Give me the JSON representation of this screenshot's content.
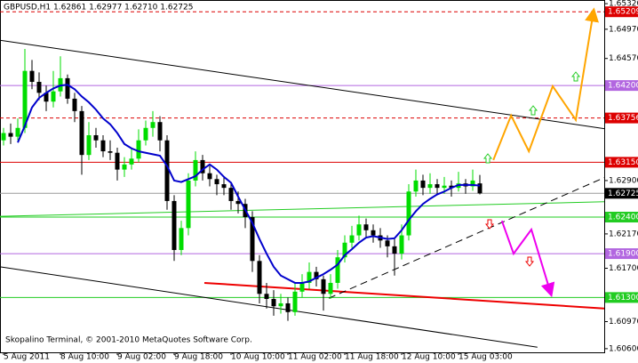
{
  "chart_data": {
    "type": "candlestick",
    "title": "GBPUSD,H1  1.62861 1.62977 1.62710 1.62725",
    "footer": "Skopalino Terminal, © 2001-2010 MetaQuotes Software Corp.",
    "up_color": "#00dd00",
    "down_color": "#000000",
    "categories": [
      "5 Aug 2011",
      null,
      null,
      null,
      null,
      null,
      null,
      null,
      "8 Aug 10:00",
      null,
      null,
      null,
      null,
      null,
      null,
      null,
      "9 Aug 02:00",
      null,
      null,
      null,
      null,
      null,
      null,
      null,
      "9 Aug 18:00",
      null,
      null,
      null,
      null,
      null,
      null,
      null,
      "10 Aug 10:00",
      null,
      null,
      null,
      null,
      null,
      null,
      null,
      "11 Aug 02:00",
      null,
      null,
      null,
      null,
      null,
      null,
      null,
      "11 Aug 18:00",
      null,
      null,
      null,
      null,
      null,
      null,
      null,
      "12 Aug 10:00",
      null,
      null,
      null,
      null,
      null,
      null,
      null,
      "15 Aug 03:00",
      null,
      null,
      null
    ],
    "open": [
      1.6345,
      1.6355,
      1.635,
      1.6362,
      1.644,
      1.6425,
      1.641,
      1.6398,
      1.6412,
      1.643,
      1.6402,
      1.6385,
      1.6325,
      1.6352,
      1.6345,
      1.633,
      1.6328,
      1.6305,
      1.6312,
      1.632,
      1.6345,
      1.6362,
      1.637,
      1.6345,
      1.6262,
      1.6195,
      1.6225,
      1.629,
      1.6318,
      1.63,
      1.6292,
      1.6285,
      1.628,
      1.6262,
      1.6258,
      1.624,
      1.618,
      1.6135,
      1.6128,
      1.6118,
      1.6122,
      1.611,
      1.6138,
      1.615,
      1.6165,
      1.6155,
      1.6135,
      1.615,
      1.6185,
      1.6205,
      1.6215,
      1.623,
      1.6222,
      1.6215,
      1.6208,
      1.62,
      1.619,
      1.6215,
      1.6275,
      1.629,
      1.628,
      1.6285,
      1.628,
      1.6283,
      1.628,
      1.6286,
      1.6282,
      1.62861
    ],
    "high": [
      1.6362,
      1.6368,
      1.6375,
      1.647,
      1.6455,
      1.6438,
      1.642,
      1.644,
      1.646,
      1.6435,
      1.641,
      1.6392,
      1.637,
      1.6362,
      1.6352,
      1.6345,
      1.6335,
      1.6322,
      1.6335,
      1.636,
      1.6372,
      1.6385,
      1.6378,
      1.6352,
      1.627,
      1.6235,
      1.63,
      1.633,
      1.6325,
      1.631,
      1.6298,
      1.6295,
      1.6288,
      1.6275,
      1.6265,
      1.6248,
      1.6188,
      1.615,
      1.614,
      1.6135,
      1.613,
      1.615,
      1.6162,
      1.6178,
      1.6172,
      1.616,
      1.6162,
      1.6195,
      1.6215,
      1.6228,
      1.6242,
      1.6238,
      1.623,
      1.6225,
      1.6215,
      1.621,
      1.623,
      1.6285,
      1.6305,
      1.6298,
      1.63,
      1.6292,
      1.6295,
      1.629,
      1.6302,
      1.6292,
      1.6305,
      1.62977
    ],
    "low": [
      1.6338,
      1.634,
      1.6345,
      1.6355,
      1.6415,
      1.64,
      1.6385,
      1.639,
      1.6405,
      1.6395,
      1.637,
      1.6298,
      1.6318,
      1.6335,
      1.6322,
      1.6318,
      1.629,
      1.6295,
      1.6305,
      1.6315,
      1.6338,
      1.635,
      1.633,
      1.625,
      1.618,
      1.6188,
      1.6215,
      1.6282,
      1.629,
      1.6282,
      1.627,
      1.627,
      1.625,
      1.6245,
      1.6225,
      1.6165,
      1.6122,
      1.6115,
      1.6105,
      1.6108,
      1.6098,
      1.6105,
      1.613,
      1.6142,
      1.6145,
      1.6112,
      1.6128,
      1.6142,
      1.6178,
      1.6198,
      1.6208,
      1.6212,
      1.6205,
      1.6198,
      1.6185,
      1.616,
      1.6182,
      1.6208,
      1.6268,
      1.627,
      1.6272,
      1.627,
      1.6272,
      1.6268,
      1.6275,
      1.6272,
      1.6276,
      1.6271
    ],
    "close": [
      1.6355,
      1.635,
      1.6362,
      1.644,
      1.6425,
      1.641,
      1.6398,
      1.6412,
      1.643,
      1.6402,
      1.6385,
      1.6325,
      1.6352,
      1.6345,
      1.633,
      1.6328,
      1.6305,
      1.6312,
      1.632,
      1.6345,
      1.6362,
      1.637,
      1.6345,
      1.6262,
      1.6195,
      1.6225,
      1.629,
      1.6318,
      1.63,
      1.6292,
      1.6285,
      1.628,
      1.6262,
      1.6258,
      1.624,
      1.618,
      1.6135,
      1.6128,
      1.6118,
      1.6122,
      1.611,
      1.6138,
      1.615,
      1.6165,
      1.6155,
      1.6135,
      1.615,
      1.6185,
      1.6205,
      1.6215,
      1.623,
      1.6222,
      1.6215,
      1.6208,
      1.62,
      1.619,
      1.6215,
      1.6275,
      1.629,
      1.628,
      1.6285,
      1.628,
      1.6283,
      1.628,
      1.6286,
      1.6282,
      1.629,
      1.62725
    ],
    "ma": {
      "color": "#0000cc",
      "values": [
        null,
        null,
        1.6342,
        1.6365,
        1.639,
        1.6403,
        1.641,
        1.6416,
        1.642,
        1.6421,
        1.6415,
        1.6405,
        1.6397,
        1.6387,
        1.6375,
        1.6367,
        1.6355,
        1.634,
        1.6334,
        1.633,
        1.6328,
        1.6326,
        1.6324,
        1.631,
        1.629,
        1.6288,
        1.6292,
        1.6296,
        1.6305,
        1.6312,
        1.6305,
        1.6295,
        1.6287,
        1.6268,
        1.625,
        1.6232,
        1.621,
        1.619,
        1.6172,
        1.616,
        1.6155,
        1.615,
        1.615,
        1.6152,
        1.6157,
        1.6162,
        1.6168,
        1.6175,
        1.6188,
        1.6196,
        1.6205,
        1.6212,
        1.6214,
        1.6212,
        1.621,
        1.6211,
        1.6222,
        1.6236,
        1.6248,
        1.6258,
        1.6265,
        1.6271,
        1.6275,
        1.628,
        1.6284,
        1.6284,
        1.6284,
        1.6283
      ]
    },
    "ylim": [
      1.6055,
      1.6537
    ],
    "yticks": [
      {
        "value": 1.6532,
        "label": "1.65320"
      },
      {
        "value": 1.6497,
        "label": "1.64970"
      },
      {
        "value": 1.6457,
        "label": "1.64570"
      },
      {
        "value": 1.629,
        "label": "1.62900"
      },
      {
        "value": 1.6217,
        "label": "1.62170"
      },
      {
        "value": 1.617,
        "label": "1.61700"
      },
      {
        "value": 1.6097,
        "label": "1.60970"
      },
      {
        "value": 1.606,
        "label": "1.60600"
      }
    ],
    "levels": [
      {
        "value": 1.65209,
        "label": "1.65209",
        "color": "#dd0000",
        "style": "dashed"
      },
      {
        "value": 1.642,
        "label": "1.64200",
        "color": "#b266e0",
        "style": "solid"
      },
      {
        "value": 1.63756,
        "label": "1.63756",
        "color": "#dd0000",
        "style": "dashed"
      },
      {
        "value": 1.6315,
        "label": "1.63150",
        "color": "#dd0000",
        "style": "solid"
      },
      {
        "value": 1.62725,
        "label": "1.62725",
        "color": "#000000",
        "style": "thin"
      },
      {
        "value": 1.624,
        "label": "1.62400",
        "color": "#22cc22",
        "style": "solid"
      },
      {
        "value": 1.619,
        "label": "1.61900",
        "color": "#b266e0",
        "style": "solid"
      },
      {
        "value": 1.613,
        "label": "1.61300",
        "color": "#22cc22",
        "style": "solid"
      }
    ],
    "trendlines": [
      {
        "color": "#000000",
        "style": "solid",
        "x": [
          -0.5,
          84.5
        ],
        "y": [
          1.6482,
          1.6361
        ]
      },
      {
        "color": "#000000",
        "style": "solid",
        "x": [
          -0.5,
          75.1
        ],
        "y": [
          1.6172,
          1.6062
        ]
      },
      {
        "color": "#22cc22",
        "style": "solid",
        "x": [
          -0.5,
          84.5
        ],
        "y": [
          1.6241,
          1.6261
        ]
      },
      {
        "color": "#ee0000",
        "style": "solid",
        "x": [
          28.25,
          84.5
        ],
        "y": [
          1.615,
          1.6115
        ]
      },
      {
        "color": "#000000",
        "style": "dashed",
        "x": [
          45.75,
          84.5
        ],
        "y": [
          1.6129,
          1.6294
        ]
      }
    ],
    "projections": [
      {
        "color": "#ffa500",
        "x": [
          68.9,
          71.4,
          73.9,
          77.25,
          80.5,
          83
        ],
        "y": [
          1.6318,
          1.6379,
          1.633,
          1.6419,
          1.6373,
          1.6522
        ]
      },
      {
        "color": "#ee00ee",
        "x": [
          70.1,
          71.75,
          74.25,
          77
        ],
        "y": [
          1.6235,
          1.619,
          1.6223,
          1.6135
        ]
      }
    ]
  }
}
